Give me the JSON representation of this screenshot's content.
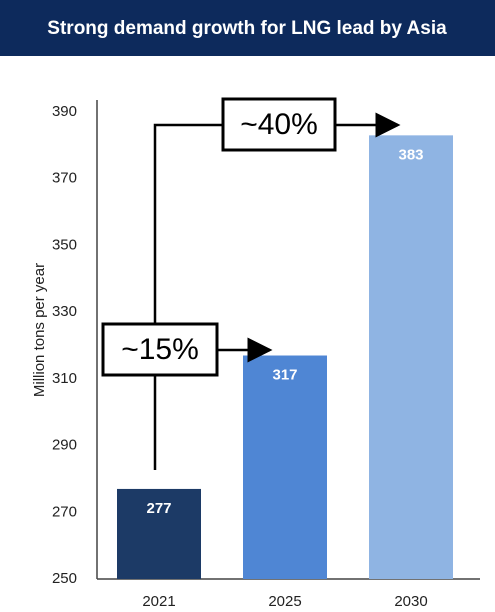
{
  "chart_data": {
    "type": "bar",
    "title": "Strong demand growth for LNG lead by Asia",
    "y_label": "Million tons per year",
    "categories": [
      "2021",
      "2025",
      "2030"
    ],
    "values": [
      277,
      317,
      383
    ],
    "colors": [
      "#1c3a66",
      "#4f86d4",
      "#8fb4e3"
    ],
    "ylim": [
      250,
      390
    ],
    "yticks": [
      250,
      270,
      290,
      310,
      330,
      350,
      370,
      390
    ],
    "grid": false,
    "annotations": [
      "~15%",
      "~40%"
    ]
  }
}
